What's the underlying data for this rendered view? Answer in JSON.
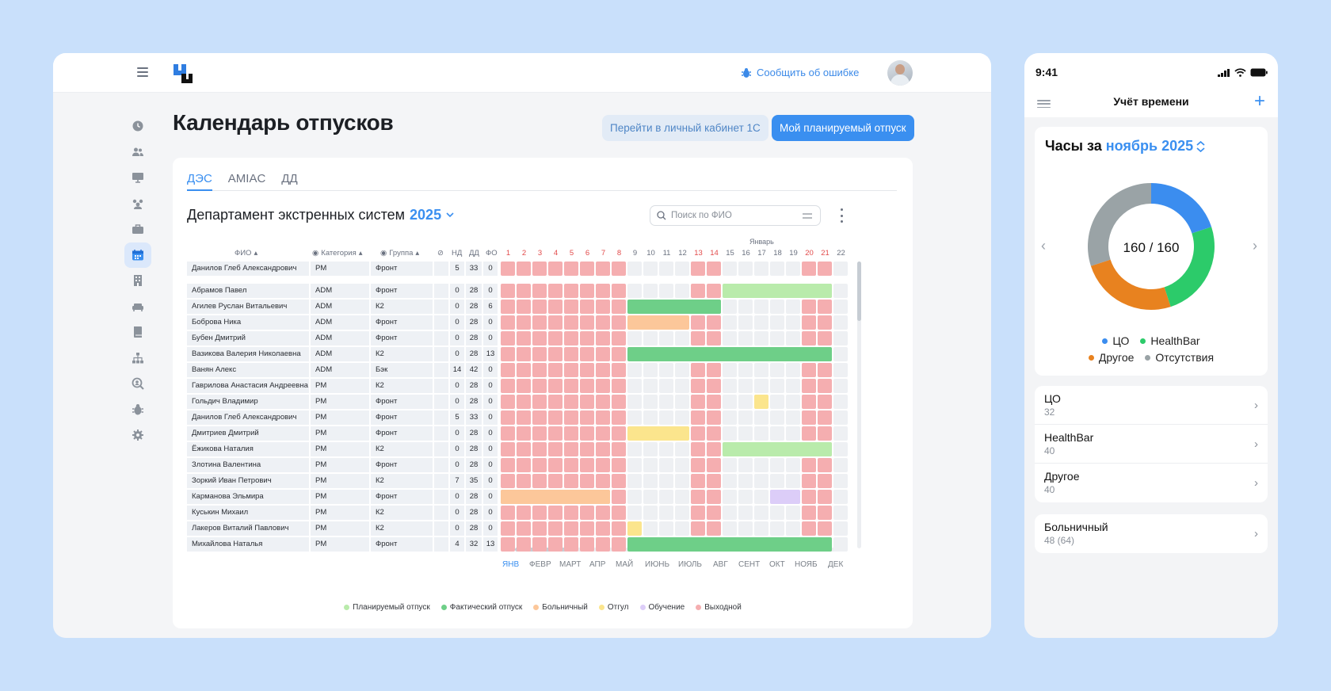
{
  "desktop": {
    "header": {
      "report_bug": "Сообщить об ошибке"
    },
    "sidebar": {
      "items": [
        {
          "name": "clock-icon"
        },
        {
          "name": "users-icon"
        },
        {
          "name": "monitor-icon"
        },
        {
          "name": "team-icon"
        },
        {
          "name": "briefcase-icon"
        },
        {
          "name": "calendar-icon",
          "active": true
        },
        {
          "name": "building-icon"
        },
        {
          "name": "sofa-icon"
        },
        {
          "name": "book-icon"
        },
        {
          "name": "org-chart-icon"
        },
        {
          "name": "search-user-icon"
        },
        {
          "name": "bug-icon"
        },
        {
          "name": "gear-icon"
        }
      ]
    },
    "page_title": "Календарь отпусков",
    "btn_1c": "Перейти в личный кабинет 1С",
    "btn_plan": "Мой планируемый отпуск",
    "tabs": [
      "ДЭС",
      "AMIAC",
      "ДД"
    ],
    "dept_title": "Департамент экстренных систем",
    "dept_year": "2025",
    "search_placeholder": "Поиск по ФИО",
    "table": {
      "month_label": "Январь",
      "headers": {
        "fio": "ФИО",
        "category": "Категория",
        "group": "Группа",
        "nd": "НД",
        "dd": "ДД",
        "fo": "ФО"
      },
      "days": [
        "1",
        "2",
        "3",
        "4",
        "5",
        "6",
        "7",
        "8",
        "9",
        "10",
        "11",
        "12",
        "13",
        "14",
        "15",
        "16",
        "17",
        "18",
        "19",
        "20",
        "21",
        "22"
      ],
      "weekend_days": [
        1,
        2,
        3,
        4,
        5,
        6,
        7,
        8,
        13,
        14,
        20,
        21
      ],
      "pinned": {
        "fio": "Данилов Глеб Александрович",
        "cat": "PM",
        "grp": "Фронт",
        "nd": "5",
        "dd": "33",
        "fo": "0"
      },
      "rows": [
        {
          "fio": "Абрамов Павел",
          "cat": "ADM",
          "grp": "Фронт",
          "nd": "0",
          "dd": "28",
          "fo": "0",
          "bars": [
            {
              "from": 15,
              "to": 21,
              "type": "planned"
            }
          ]
        },
        {
          "fio": "Агилев Руслан Витальевич",
          "cat": "ADM",
          "grp": "К2",
          "nd": "0",
          "dd": "28",
          "fo": "6",
          "bars": [
            {
              "from": 9,
              "to": 14,
              "type": "actual"
            }
          ]
        },
        {
          "fio": "Боброва Ника",
          "cat": "ADM",
          "grp": "Фронт",
          "nd": "0",
          "dd": "28",
          "fo": "0",
          "bars": [
            {
              "from": 9,
              "to": 12,
              "type": "sick"
            }
          ]
        },
        {
          "fio": "Бубен Дмитрий",
          "cat": "ADM",
          "grp": "Фронт",
          "nd": "0",
          "dd": "28",
          "fo": "0",
          "bars": []
        },
        {
          "fio": "Вазикова Валерия Николаевна",
          "cat": "ADM",
          "grp": "К2",
          "nd": "0",
          "dd": "28",
          "fo": "13",
          "bars": [
            {
              "from": 9,
              "to": 21,
              "type": "actual"
            }
          ]
        },
        {
          "fio": "Ванян Алекс",
          "cat": "ADM",
          "grp": "Бэк",
          "nd": "14",
          "dd": "42",
          "fo": "0",
          "bars": []
        },
        {
          "fio": "Гаврилова Анастасия Андреевна",
          "cat": "PM",
          "grp": "К2",
          "nd": "0",
          "dd": "28",
          "fo": "0",
          "bars": []
        },
        {
          "fio": "Гольдич Владимир",
          "cat": "PM",
          "grp": "Фронт",
          "nd": "0",
          "dd": "28",
          "fo": "0",
          "bars": [
            {
              "from": 17,
              "to": 17,
              "type": "dayoff"
            }
          ]
        },
        {
          "fio": "Данилов Глеб Александрович",
          "cat": "PM",
          "grp": "Фронт",
          "nd": "5",
          "dd": "33",
          "fo": "0",
          "bars": []
        },
        {
          "fio": "Дмитриев Дмитрий",
          "cat": "PM",
          "grp": "Фронт",
          "nd": "0",
          "dd": "28",
          "fo": "0",
          "bars": [
            {
              "from": 9,
              "to": 12,
              "type": "dayoff"
            }
          ]
        },
        {
          "fio": "Ёжикова Наталия",
          "cat": "PM",
          "grp": "К2",
          "nd": "0",
          "dd": "28",
          "fo": "0",
          "bars": [
            {
              "from": 15,
              "to": 21,
              "type": "planned"
            }
          ]
        },
        {
          "fio": "Злотина Валентина",
          "cat": "PM",
          "grp": "Фронт",
          "nd": "0",
          "dd": "28",
          "fo": "0",
          "bars": []
        },
        {
          "fio": "Зоркий Иван Петрович",
          "cat": "PM",
          "grp": "К2",
          "nd": "7",
          "dd": "35",
          "fo": "0",
          "bars": []
        },
        {
          "fio": "Карманова Эльмира",
          "cat": "PM",
          "grp": "Фронт",
          "nd": "0",
          "dd": "28",
          "fo": "0",
          "bars": [
            {
              "from": 1,
              "to": 7,
              "type": "sick"
            },
            {
              "from": 18,
              "to": 19,
              "type": "study"
            }
          ]
        },
        {
          "fio": "Куськин Михаил",
          "cat": "PM",
          "grp": "К2",
          "nd": "0",
          "dd": "28",
          "fo": "0",
          "bars": []
        },
        {
          "fio": "Лакеров Виталий Павлович",
          "cat": "PM",
          "grp": "К2",
          "nd": "0",
          "dd": "28",
          "fo": "0",
          "bars": [
            {
              "from": 9,
              "to": 9,
              "type": "dayoff"
            }
          ]
        },
        {
          "fio": "Михайлова Наталья",
          "cat": "PM",
          "grp": "Фронт",
          "nd": "4",
          "dd": "32",
          "fo": "13",
          "bars": [
            {
              "from": 9,
              "to": 21,
              "type": "actual"
            }
          ]
        }
      ],
      "months": [
        "ЯНВ",
        "ФЕВР",
        "МАРТ",
        "АПР",
        "МАЙ",
        "ИЮНЬ",
        "ИЮЛЬ",
        "АВГ",
        "СЕНТ",
        "ОКТ",
        "НОЯБ",
        "ДЕК"
      ]
    },
    "legend": [
      {
        "label": "Планируемый отпуск",
        "color": "#b9ebab"
      },
      {
        "label": "Фактический отпуск",
        "color": "#6ecf88"
      },
      {
        "label": "Больничный",
        "color": "#fcc79a"
      },
      {
        "label": "Отгул",
        "color": "#fbe58d"
      },
      {
        "label": "Обучение",
        "color": "#dccdf8"
      },
      {
        "label": "Выходной",
        "color": "#f5aeb0"
      }
    ]
  },
  "mobile": {
    "time": "9:41",
    "nav_title": "Учёт времени",
    "hours_label": "Часы за",
    "month": "ноябрь 2025",
    "donut_center": "160 / 160",
    "donut_slices": [
      {
        "label": "ЦО",
        "value": 32,
        "color": "#3b8def"
      },
      {
        "label": "HealthBar",
        "value": 40,
        "color": "#2ccb6a"
      },
      {
        "label": "Другое",
        "value": 40,
        "color": "#e8821f"
      },
      {
        "label": "Отсутствия",
        "value": 48,
        "color": "#9aa3a6"
      }
    ],
    "legend_row1": [
      "ЦО",
      "HealthBar"
    ],
    "legend_row2": [
      "Другое",
      "Отсутствия"
    ],
    "list": [
      {
        "title": "ЦО",
        "value": "32"
      },
      {
        "title": "HealthBar",
        "value": "40"
      },
      {
        "title": "Другое",
        "value": "40"
      }
    ],
    "sick": {
      "title": "Больничный",
      "value": "48 (64)"
    }
  }
}
